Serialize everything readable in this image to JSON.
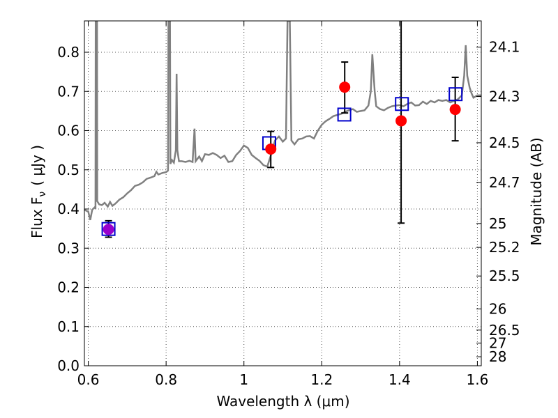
{
  "chart_data": {
    "type": "line",
    "title": "",
    "xlabel": "Wavelength  λ (μm)",
    "ylabel": "Flux  F",
    "ylabel_sub": "ν",
    "ylabel_unit": "( μJy )",
    "ylabel_right": "Magnitude (AB)",
    "xlim": [
      0.59,
      1.61
    ],
    "ylim": [
      0.0,
      0.88
    ],
    "grid": true,
    "x_ticks": [
      0.6,
      0.8,
      1.0,
      1.2,
      1.4,
      1.6
    ],
    "x_tick_labels": [
      "0.6",
      "0.8",
      "1",
      "1.2",
      "1.4",
      "1.6"
    ],
    "y_ticks": [
      0.0,
      0.1,
      0.2,
      0.3,
      0.4,
      0.5,
      0.6,
      0.7,
      0.8
    ],
    "y_tick_labels": [
      "0.0",
      "0.1",
      "0.2",
      "0.3",
      "0.4",
      "0.5",
      "0.6",
      "0.7",
      "0.8"
    ],
    "right_ticks": [
      {
        "label": "24.1",
        "flux": 0.813
      },
      {
        "label": "24.3",
        "flux": 0.687
      },
      {
        "label": "24.5",
        "flux": 0.569
      },
      {
        "label": "24.7",
        "flux": 0.468
      },
      {
        "label": "25",
        "flux": 0.363
      },
      {
        "label": "25.2",
        "flux": 0.302
      },
      {
        "label": "25.5",
        "flux": 0.229
      },
      {
        "label": "26",
        "flux": 0.145
      },
      {
        "label": "26.5",
        "flux": 0.091
      },
      {
        "label": "27",
        "flux": 0.058
      },
      {
        "label": "28",
        "flux": 0.023
      }
    ],
    "colors": {
      "model": "#808080",
      "observed": "#ff0000",
      "model_phot": "#0000cc",
      "blend": "#9900cc",
      "errorbar": "#000000",
      "grid": "#555555"
    },
    "model_spectrum": [
      [
        0.59,
        0.398
      ],
      [
        0.6,
        0.393
      ],
      [
        0.605,
        0.372
      ],
      [
        0.61,
        0.398
      ],
      [
        0.617,
        0.405
      ],
      [
        0.6185,
        0.4
      ],
      [
        0.619,
        0.88
      ],
      [
        0.6225,
        0.88
      ],
      [
        0.623,
        0.42
      ],
      [
        0.628,
        0.412
      ],
      [
        0.635,
        0.41
      ],
      [
        0.642,
        0.416
      ],
      [
        0.65,
        0.406
      ],
      [
        0.656,
        0.418
      ],
      [
        0.662,
        0.408
      ],
      [
        0.67,
        0.414
      ],
      [
        0.68,
        0.424
      ],
      [
        0.69,
        0.43
      ],
      [
        0.7,
        0.44
      ],
      [
        0.71,
        0.448
      ],
      [
        0.72,
        0.459
      ],
      [
        0.73,
        0.462
      ],
      [
        0.74,
        0.468
      ],
      [
        0.75,
        0.477
      ],
      [
        0.76,
        0.48
      ],
      [
        0.77,
        0.484
      ],
      [
        0.775,
        0.495
      ],
      [
        0.78,
        0.488
      ],
      [
        0.79,
        0.492
      ],
      [
        0.8,
        0.494
      ],
      [
        0.805,
        0.498
      ],
      [
        0.806,
        0.88
      ],
      [
        0.81,
        0.88
      ],
      [
        0.811,
        0.515
      ],
      [
        0.815,
        0.525
      ],
      [
        0.82,
        0.518
      ],
      [
        0.825,
        0.55
      ],
      [
        0.827,
        0.745
      ],
      [
        0.829,
        0.55
      ],
      [
        0.833,
        0.522
      ],
      [
        0.84,
        0.522
      ],
      [
        0.85,
        0.52
      ],
      [
        0.86,
        0.523
      ],
      [
        0.868,
        0.52
      ],
      [
        0.873,
        0.605
      ],
      [
        0.876,
        0.522
      ],
      [
        0.885,
        0.534
      ],
      [
        0.892,
        0.522
      ],
      [
        0.9,
        0.54
      ],
      [
        0.91,
        0.538
      ],
      [
        0.92,
        0.543
      ],
      [
        0.93,
        0.538
      ],
      [
        0.94,
        0.53
      ],
      [
        0.95,
        0.536
      ],
      [
        0.96,
        0.52
      ],
      [
        0.97,
        0.522
      ],
      [
        0.98,
        0.538
      ],
      [
        0.99,
        0.548
      ],
      [
        1.0,
        0.562
      ],
      [
        1.01,
        0.556
      ],
      [
        1.02,
        0.538
      ],
      [
        1.03,
        0.53
      ],
      [
        1.04,
        0.523
      ],
      [
        1.05,
        0.512
      ],
      [
        1.06,
        0.508
      ],
      [
        1.07,
        0.54
      ],
      [
        1.08,
        0.575
      ],
      [
        1.09,
        0.585
      ],
      [
        1.1,
        0.572
      ],
      [
        1.108,
        0.58
      ],
      [
        1.112,
        0.88
      ],
      [
        1.118,
        0.88
      ],
      [
        1.122,
        0.575
      ],
      [
        1.13,
        0.565
      ],
      [
        1.14,
        0.578
      ],
      [
        1.15,
        0.58
      ],
      [
        1.16,
        0.585
      ],
      [
        1.17,
        0.586
      ],
      [
        1.18,
        0.58
      ],
      [
        1.19,
        0.6
      ],
      [
        1.2,
        0.615
      ],
      [
        1.21,
        0.624
      ],
      [
        1.22,
        0.63
      ],
      [
        1.23,
        0.637
      ],
      [
        1.24,
        0.64
      ],
      [
        1.25,
        0.643
      ],
      [
        1.26,
        0.648
      ],
      [
        1.27,
        0.652
      ],
      [
        1.28,
        0.655
      ],
      [
        1.29,
        0.648
      ],
      [
        1.3,
        0.65
      ],
      [
        1.31,
        0.652
      ],
      [
        1.32,
        0.664
      ],
      [
        1.326,
        0.7
      ],
      [
        1.33,
        0.795
      ],
      [
        1.336,
        0.7
      ],
      [
        1.34,
        0.662
      ],
      [
        1.35,
        0.655
      ],
      [
        1.36,
        0.652
      ],
      [
        1.37,
        0.658
      ],
      [
        1.38,
        0.662
      ],
      [
        1.39,
        0.664
      ],
      [
        1.4,
        0.665
      ],
      [
        1.41,
        0.662
      ],
      [
        1.42,
        0.668
      ],
      [
        1.43,
        0.672
      ],
      [
        1.44,
        0.664
      ],
      [
        1.45,
        0.665
      ],
      [
        1.46,
        0.674
      ],
      [
        1.47,
        0.668
      ],
      [
        1.48,
        0.676
      ],
      [
        1.49,
        0.672
      ],
      [
        1.5,
        0.678
      ],
      [
        1.51,
        0.676
      ],
      [
        1.52,
        0.678
      ],
      [
        1.53,
        0.672
      ],
      [
        1.54,
        0.676
      ],
      [
        1.55,
        0.68
      ],
      [
        1.56,
        0.69
      ],
      [
        1.566,
        0.74
      ],
      [
        1.57,
        0.818
      ],
      [
        1.574,
        0.74
      ],
      [
        1.58,
        0.71
      ],
      [
        1.585,
        0.695
      ],
      [
        1.59,
        0.684
      ],
      [
        1.6,
        0.69
      ],
      [
        1.61,
        0.69
      ]
    ],
    "observed": [
      {
        "x": 0.652,
        "y": 0.348,
        "yerr_low": 0.02,
        "yerr_high": 0.022
      },
      {
        "x": 1.069,
        "y": 0.553,
        "yerr_low": 0.047,
        "yerr_high": 0.045
      },
      {
        "x": 1.259,
        "y": 0.711,
        "yerr_low": 0.066,
        "yerr_high": 0.064
      },
      {
        "x": 1.404,
        "y": 0.625,
        "yerr_low": 0.261,
        "yerr_high": 0.263
      },
      {
        "x": 1.543,
        "y": 0.654,
        "yerr_low": 0.08,
        "yerr_high": 0.082
      }
    ],
    "model_photometry": [
      {
        "x": 0.652,
        "y": 0.349
      },
      {
        "x": 1.065,
        "y": 0.568
      },
      {
        "x": 1.258,
        "y": 0.641
      },
      {
        "x": 1.406,
        "y": 0.668
      },
      {
        "x": 1.544,
        "y": 0.693
      }
    ]
  }
}
